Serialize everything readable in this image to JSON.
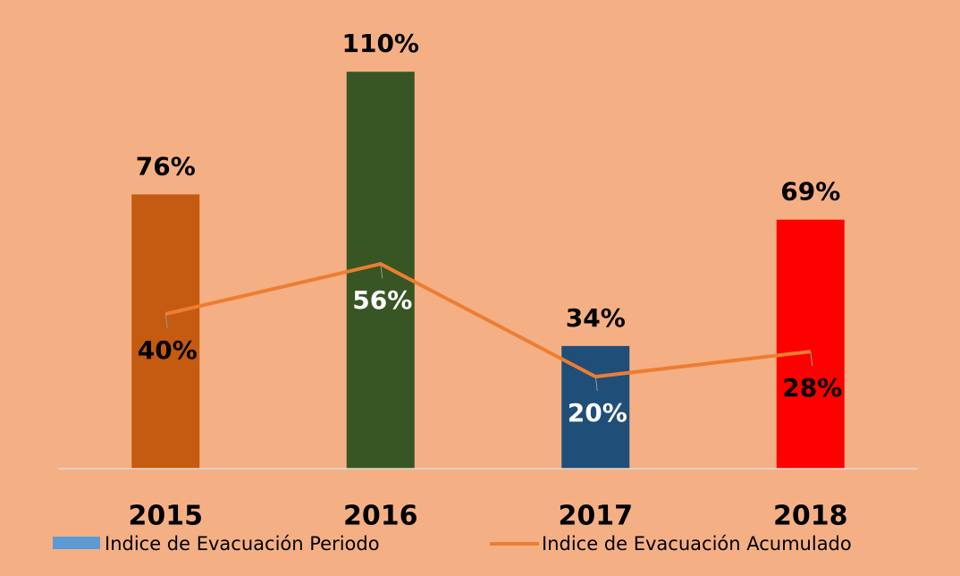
{
  "chart_data": {
    "type": "bar_line",
    "categories": [
      "2015",
      "2016",
      "2017",
      "2018"
    ],
    "series": [
      {
        "name": "Indice de Evacuación Periodo",
        "type": "bar",
        "color": "#5b9bd5",
        "colors": [
          "#c55a11",
          "#375623",
          "#1f4e79",
          "#ff0000"
        ],
        "values": [
          76,
          110,
          34,
          69
        ],
        "value_labels": [
          "76%",
          "110%",
          "34%",
          "69%"
        ],
        "label_colors": [
          "#000000",
          "#000000",
          "#000000",
          "#000000"
        ]
      },
      {
        "name": "Indice de Evacuación Acumulado",
        "type": "line",
        "axis": "y2",
        "color": "#ed7d31",
        "values": [
          40,
          56,
          20,
          28
        ],
        "value_labels": [
          "40%",
          "56%",
          "20%",
          "28%"
        ],
        "label_colors": [
          "#000000",
          "#ffffff",
          "#ffffff",
          "#000000"
        ]
      }
    ],
    "ylim": [
      0,
      116
    ],
    "y2lim": [
      -9.4,
      124.3
    ],
    "legend": "bottom",
    "background": "#f4b084"
  }
}
